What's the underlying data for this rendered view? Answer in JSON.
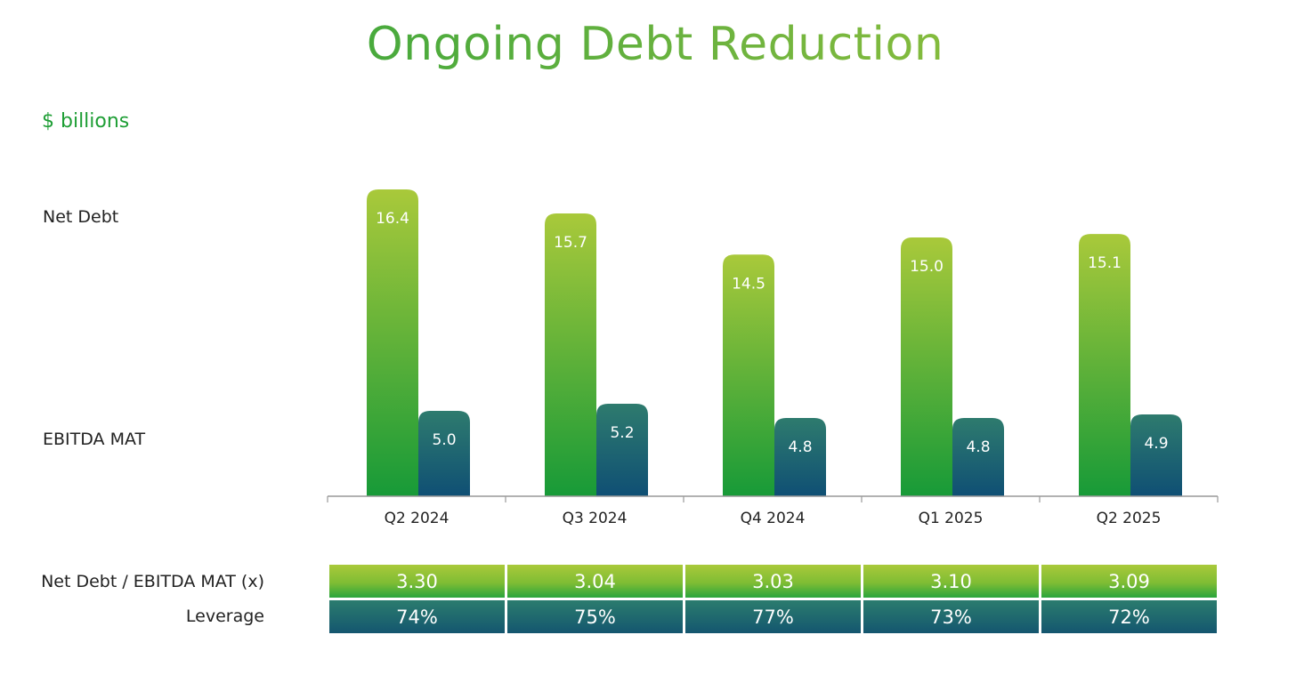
{
  "title": "Ongoing Debt Reduction",
  "unit": "$ billions",
  "colors": {
    "net_debt_top": "#a9c93a",
    "net_debt_bottom": "#179a38",
    "ebitda_top": "#2e7b6e",
    "ebitda_bottom": "#0f4f74",
    "title_start": "#22a03a",
    "title_end": "#a9c93a",
    "axis": "#999999"
  },
  "chart_data": {
    "type": "bar",
    "categories": [
      "Q2 2024",
      "Q3 2024",
      "Q4 2024",
      "Q1 2025",
      "Q2 2025"
    ],
    "series": [
      {
        "name": "Net Debt",
        "values": [
          16.4,
          15.7,
          14.5,
          15.0,
          15.1
        ],
        "labels": [
          "16.4",
          "15.7",
          "14.5",
          "15.0",
          "15.1"
        ]
      },
      {
        "name": "EBITDA MAT",
        "values": [
          5.0,
          5.2,
          4.8,
          4.8,
          4.9
        ],
        "labels": [
          "5.0",
          "5.2",
          "4.8",
          "4.8",
          "4.9"
        ]
      }
    ],
    "grid": false,
    "legend": "left"
  },
  "table": {
    "rows": [
      {
        "label": "Net Debt / EBITDA MAT (x)",
        "values": [
          "3.30",
          "3.04",
          "3.03",
          "3.10",
          "3.09"
        ]
      },
      {
        "label": "Leverage",
        "values": [
          "74%",
          "75%",
          "77%",
          "73%",
          "72%"
        ]
      }
    ]
  }
}
